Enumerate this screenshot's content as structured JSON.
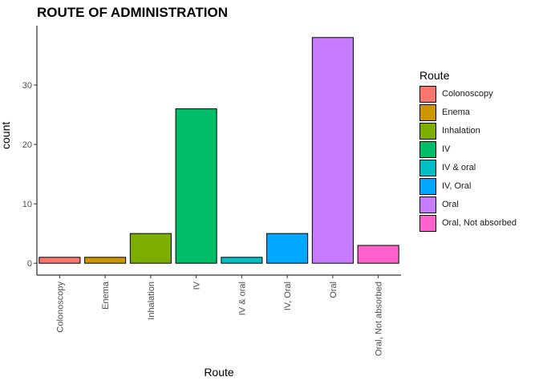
{
  "chart_data": {
    "type": "bar",
    "title": "ROUTE OF ADMINISTRATION",
    "xlabel": "Route",
    "ylabel": "count",
    "categories": [
      "Colonoscopy",
      "Enema",
      "Inhalation",
      "IV",
      "IV & oral",
      "IV, Oral",
      "Oral",
      "Oral, Not absorbed"
    ],
    "values": [
      1,
      1,
      5,
      26,
      1,
      5,
      38,
      3
    ],
    "colors": [
      "#F8766D",
      "#CD9600",
      "#7CAE00",
      "#00BE67",
      "#00BFC4",
      "#00A9FF",
      "#C77CFF",
      "#FF61CC"
    ],
    "yticks": [
      0,
      10,
      20,
      30
    ],
    "ylim": [
      -2,
      40
    ],
    "grid": false,
    "legend": {
      "title": "Route",
      "position": "right"
    }
  }
}
